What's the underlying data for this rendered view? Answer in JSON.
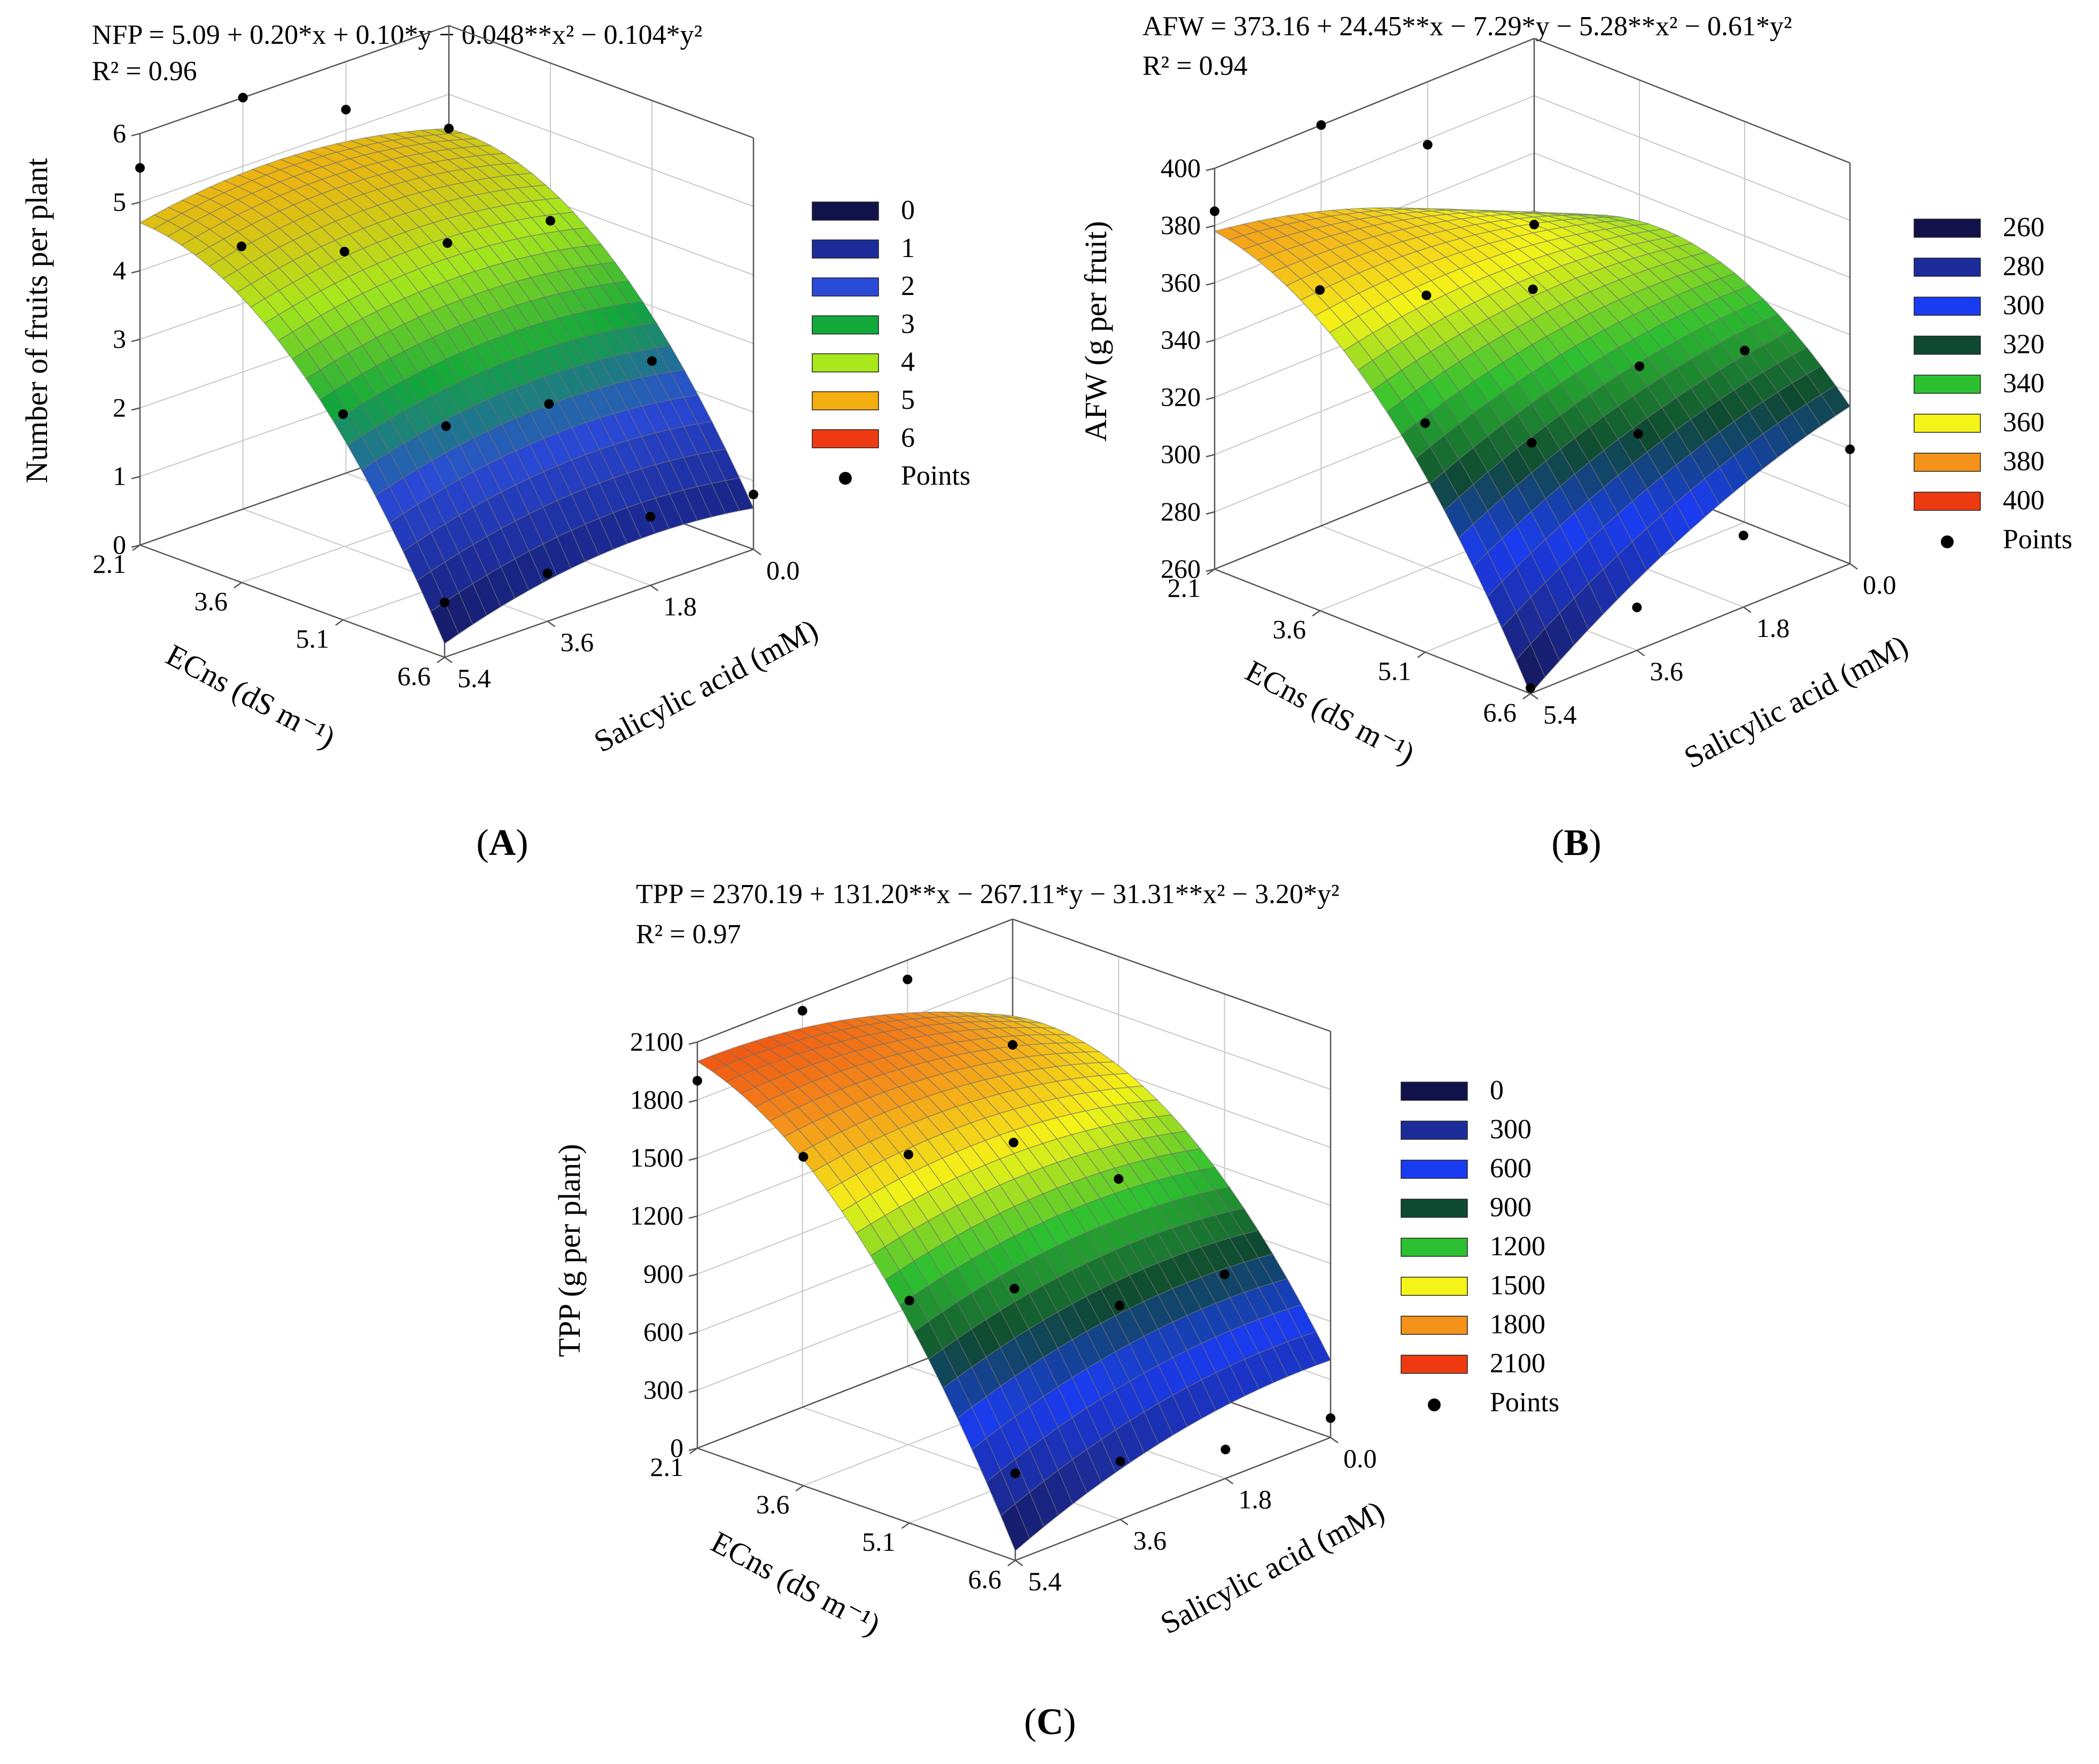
{
  "panels": [
    {
      "label": "(A)",
      "letter": "A",
      "equation": "NFP = 5.09 + 0.20*x + 0.10*y − 0.048**x² − 0.104*y²",
      "r2": "R² = 0.96",
      "zlabel": "Number of fruits per plant",
      "xlabel": "ECns (dS m⁻¹)",
      "ylabel": "Salicylic acid (mM)",
      "zticks": [
        "0",
        "1",
        "2",
        "3",
        "4",
        "5",
        "6"
      ],
      "xticks": [
        "2.1",
        "3.6",
        "5.1",
        "6.6"
      ],
      "yticks": [
        "0.0",
        "1.8",
        "3.6",
        "5.4"
      ],
      "legend": [
        "0",
        "1",
        "2",
        "3",
        "4",
        "5",
        "6"
      ],
      "legend_points": "Points",
      "legend_colors": [
        "#12124a",
        "#1c2c9a",
        "#2a4ad8",
        "#12a83a",
        "#a8e81c",
        "#f4ae10",
        "#ee3a10"
      ]
    },
    {
      "label": "(B)",
      "letter": "B",
      "equation": "AFW = 373.16 + 24.45**x − 7.29*y − 5.28**x² − 0.61*y²",
      "r2": "R² = 0.94",
      "zlabel": "AFW (g per fruit)",
      "xlabel": "ECns (dS m⁻¹)",
      "ylabel": "Salicylic acid (mM)",
      "zticks": [
        "260",
        "280",
        "300",
        "320",
        "340",
        "360",
        "380",
        "400"
      ],
      "xticks": [
        "2.1",
        "3.6",
        "5.1",
        "6.6"
      ],
      "yticks": [
        "0.0",
        "1.8",
        "3.6",
        "5.4"
      ],
      "legend": [
        "260",
        "280",
        "300",
        "320",
        "340",
        "360",
        "380",
        "400"
      ],
      "legend_points": "Points",
      "legend_colors": [
        "#12124a",
        "#1c2c9a",
        "#1a3cf0",
        "#0e4a30",
        "#2cc030",
        "#f4f418",
        "#f4921a",
        "#ee3a10"
      ]
    },
    {
      "label": "(C)",
      "letter": "C",
      "equation": "TPP = 2370.19 + 131.20**x − 267.11*y − 31.31**x² − 3.20*y²",
      "r2": "R² = 0.97",
      "zlabel": "TPP (g per plant)",
      "xlabel": "ECns (dS m⁻¹)",
      "ylabel": "Salicylic acid (mM)",
      "zticks": [
        "0",
        "300",
        "600",
        "900",
        "1200",
        "1500",
        "1800",
        "2100"
      ],
      "xticks": [
        "2.1",
        "3.6",
        "5.1",
        "6.6"
      ],
      "yticks": [
        "0.0",
        "1.8",
        "3.6",
        "5.4"
      ],
      "legend": [
        "0",
        "300",
        "600",
        "900",
        "1200",
        "1500",
        "1800",
        "2100"
      ],
      "legend_points": "Points",
      "legend_colors": [
        "#12124a",
        "#1c2c9a",
        "#1a3cf0",
        "#0e4a30",
        "#2cc030",
        "#f4f418",
        "#f4921a",
        "#ee3a10"
      ]
    }
  ],
  "chart_data": [
    {
      "type": "surface3d",
      "title": "NFP = 5.09 + 0.20*x + 0.10*y − 0.048**x² − 0.104*y²",
      "r2": 0.96,
      "xlabel": "ECns (dS m⁻¹)",
      "ylabel": "Salicylic acid (mM)",
      "zlabel": "Number of fruits per plant",
      "xlim": [
        2.1,
        6.6
      ],
      "ylim": [
        0.0,
        5.4
      ],
      "zlim": [
        0,
        6
      ],
      "coef": {
        "c": 5.09,
        "x": 0.2,
        "y": 0.1,
        "x2": -0.048,
        "y2": -0.104
      },
      "surface_corners": {
        "x2.1_y0": 4.5,
        "x2.1_y5.4": 4.7,
        "x6.6_y0": 0.6,
        "x6.6_y5.4": 0.2
      },
      "points": [
        [
          2.1,
          0.0,
          4.5
        ],
        [
          2.1,
          1.8,
          5.3
        ],
        [
          2.1,
          3.6,
          6.0
        ],
        [
          2.1,
          5.4,
          5.5
        ],
        [
          3.6,
          0.0,
          3.7
        ],
        [
          3.6,
          1.8,
          3.9
        ],
        [
          3.6,
          3.6,
          4.3
        ],
        [
          3.6,
          5.4,
          4.9
        ],
        [
          5.1,
          0.0,
          2.2
        ],
        [
          5.1,
          1.8,
          2.1
        ],
        [
          5.1,
          3.6,
          2.3
        ],
        [
          5.1,
          5.4,
          3.0
        ],
        [
          6.6,
          0.0,
          0.8
        ],
        [
          6.6,
          1.8,
          1.0
        ],
        [
          6.6,
          3.6,
          0.7
        ],
        [
          6.6,
          5.4,
          0.8
        ]
      ]
    },
    {
      "type": "surface3d",
      "title": "AFW = 373.16 + 24.45**x − 7.29*y − 5.28**x² − 0.61*y²",
      "r2": 0.94,
      "xlabel": "ECns (dS m⁻¹)",
      "ylabel": "Salicylic acid (mM)",
      "zlabel": "AFW (g per fruit)",
      "xlim": [
        2.1,
        6.6
      ],
      "ylim": [
        0.0,
        5.4
      ],
      "zlim": [
        260,
        400
      ],
      "coef": {
        "c": 373.16,
        "x": 24.45,
        "y": -7.29,
        "x2": -5.28,
        "y2": -0.61
      },
      "surface_corners": {
        "x2.1_y0": 335,
        "x2.1_y5.4": 378,
        "x6.6_y0": 315,
        "x6.6_y5.4": 260
      },
      "points": [
        [
          2.1,
          0.0,
          335
        ],
        [
          2.1,
          1.8,
          378
        ],
        [
          2.1,
          3.6,
          400
        ],
        [
          2.1,
          5.4,
          385
        ],
        [
          3.6,
          0.0,
          300
        ],
        [
          3.6,
          1.8,
          342
        ],
        [
          3.6,
          3.6,
          355
        ],
        [
          3.6,
          5.4,
          372
        ],
        [
          5.1,
          0.0,
          320
        ],
        [
          5.1,
          1.8,
          306
        ],
        [
          5.1,
          3.6,
          318
        ],
        [
          5.1,
          5.4,
          340
        ],
        [
          6.6,
          0.0,
          300
        ],
        [
          6.6,
          1.8,
          285
        ],
        [
          6.6,
          3.6,
          275
        ],
        [
          6.6,
          5.4,
          262
        ]
      ]
    },
    {
      "type": "surface3d",
      "title": "TPP = 2370.19 + 131.20**x − 267.11*y − 31.31**x² − 3.20*y²",
      "r2": 0.97,
      "xlabel": "ECns (dS m⁻¹)",
      "ylabel": "Salicylic acid (mM)",
      "zlabel": "TPP (g per plant)",
      "xlim": [
        2.1,
        6.6
      ],
      "ylim": [
        0.0,
        5.4
      ],
      "zlim": [
        0,
        2100
      ],
      "coef": {
        "c": 2370.19,
        "x": 131.2,
        "y": -267.11,
        "x2": -31.31,
        "y2": -3.2
      },
      "surface_corners": {
        "x2.1_y0": 1600,
        "x2.1_y5.4": 2000,
        "x6.6_y0": 400,
        "x6.6_y5.4": 50
      },
      "points": [
        [
          2.1,
          0.0,
          1450
        ],
        [
          2.1,
          1.8,
          2000
        ],
        [
          2.1,
          3.6,
          2050
        ],
        [
          2.1,
          5.4,
          1900
        ],
        [
          3.6,
          0.0,
          950
        ],
        [
          3.6,
          1.8,
          1350
        ],
        [
          3.6,
          3.6,
          1500
        ],
        [
          3.6,
          5.4,
          1700
        ],
        [
          5.1,
          0.0,
          650
        ],
        [
          5.1,
          1.8,
          700
        ],
        [
          5.1,
          3.6,
          1000
        ],
        [
          5.1,
          5.4,
          1150
        ],
        [
          6.6,
          0.0,
          100
        ],
        [
          6.6,
          1.8,
          150
        ],
        [
          6.6,
          3.6,
          300
        ],
        [
          6.6,
          5.4,
          450
        ]
      ]
    }
  ]
}
